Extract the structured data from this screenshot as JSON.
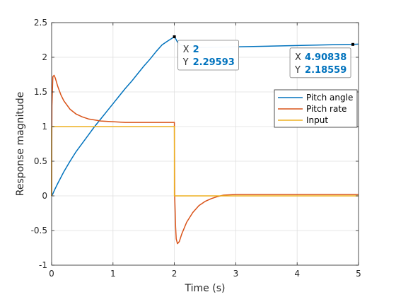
{
  "chart_data": {
    "type": "line",
    "title": "",
    "xlabel": "Time (s)",
    "ylabel": "Response magnitude",
    "xlim": [
      0,
      5
    ],
    "ylim": [
      -1,
      2.5
    ],
    "xticks": [
      0,
      1,
      2,
      3,
      4,
      5
    ],
    "xtick_labels": [
      "0",
      "1",
      "2",
      "3",
      "4",
      "5"
    ],
    "yticks": [
      -1,
      -0.5,
      0,
      0.5,
      1,
      1.5,
      2,
      2.5
    ],
    "ytick_labels": [
      "-1",
      "-0.5",
      "0",
      "0.5",
      "1",
      "1.5",
      "2",
      "2.5"
    ],
    "grid": true,
    "legend_position": "right",
    "series": [
      {
        "name": "Pitch angle",
        "color": "#0072bd",
        "x": [
          0,
          0.02,
          0.05,
          0.1,
          0.2,
          0.3,
          0.4,
          0.5,
          0.6,
          0.7,
          0.8,
          0.9,
          1.0,
          1.1,
          1.2,
          1.3,
          1.4,
          1.5,
          1.6,
          1.7,
          1.8,
          1.9,
          2.0,
          2.02,
          2.05,
          2.1,
          2.2,
          2.3,
          2.5,
          3.0,
          3.5,
          4.0,
          4.5,
          4.90838,
          5.0
        ],
        "y": [
          0,
          0.03,
          0.09,
          0.18,
          0.35,
          0.5,
          0.64,
          0.76,
          0.88,
          1.0,
          1.11,
          1.22,
          1.33,
          1.44,
          1.55,
          1.65,
          1.76,
          1.87,
          1.97,
          2.08,
          2.18,
          2.24,
          2.29593,
          2.27,
          2.22,
          2.18,
          2.15,
          2.14,
          2.14,
          2.15,
          2.16,
          2.17,
          2.18,
          2.18559,
          2.19
        ]
      },
      {
        "name": "Pitch rate",
        "color": "#d95319",
        "x": [
          0,
          0.005,
          0.02,
          0.04,
          0.06,
          0.1,
          0.15,
          0.2,
          0.3,
          0.4,
          0.5,
          0.6,
          0.8,
          1.0,
          1.2,
          1.5,
          1.8,
          1.99,
          2.0,
          2.005,
          2.02,
          2.03,
          2.05,
          2.08,
          2.12,
          2.2,
          2.3,
          2.4,
          2.5,
          2.6,
          2.7,
          2.8,
          3.0,
          3.5,
          4.0,
          4.5,
          5.0
        ],
        "y": [
          0,
          1.3,
          1.72,
          1.74,
          1.7,
          1.58,
          1.46,
          1.37,
          1.25,
          1.18,
          1.14,
          1.11,
          1.08,
          1.07,
          1.06,
          1.06,
          1.06,
          1.06,
          1.06,
          0.0,
          -0.45,
          -0.62,
          -0.69,
          -0.66,
          -0.55,
          -0.38,
          -0.24,
          -0.14,
          -0.08,
          -0.04,
          -0.01,
          0.01,
          0.02,
          0.02,
          0.02,
          0.02,
          0.02
        ]
      },
      {
        "name": "Input",
        "color": "#edb120",
        "x": [
          0,
          0.0001,
          2.0,
          2.0001,
          5.0
        ],
        "y": [
          0,
          1,
          1,
          0,
          0
        ]
      }
    ],
    "datatips": [
      {
        "x": 2,
        "y": 2.29593,
        "x_label": "X",
        "y_label": "Y",
        "x_text": "2",
        "y_text": "2.29593"
      },
      {
        "x": 4.90838,
        "y": 2.18559,
        "x_label": "X",
        "y_label": "Y",
        "x_text": "4.90838",
        "y_text": "2.18559"
      }
    ]
  }
}
